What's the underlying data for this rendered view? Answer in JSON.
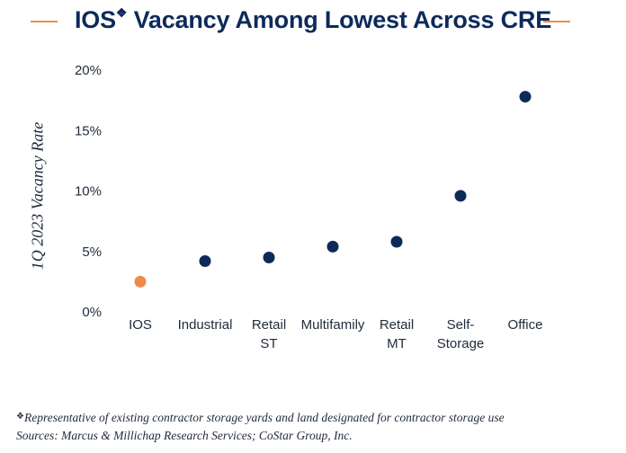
{
  "header": {
    "title_main": "IOS",
    "title_mark": "❖",
    "title_rest": " Vacancy Among Lowest Across CRE"
  },
  "colors": {
    "title": "#0e2a5b",
    "accent": "#f08a4b",
    "dot": "#0e2a5b",
    "highlight": "#f08a4b",
    "text": "#1f2a3a"
  },
  "chart_data": {
    "type": "scatter",
    "title": "IOS❖ Vacancy Among Lowest Across CRE",
    "xlabel": "",
    "ylabel": "1Q 2023 Vacancy Rate",
    "categories": [
      "IOS",
      "Industrial",
      "Retail ST",
      "Multifamily",
      "Retail MT",
      "Self-Storage",
      "Office"
    ],
    "category_label_lines": [
      [
        "IOS"
      ],
      [
        "Industrial"
      ],
      [
        "Retail",
        "ST"
      ],
      [
        "Multifamily"
      ],
      [
        "Retail",
        "MT"
      ],
      [
        "Self-",
        "Storage"
      ],
      [
        "Office"
      ]
    ],
    "values": [
      2.5,
      4.2,
      4.5,
      5.4,
      5.8,
      9.6,
      17.8
    ],
    "highlight_category": "IOS",
    "ylim": [
      0,
      20
    ],
    "yticks": [
      0,
      5,
      10,
      15,
      20
    ],
    "ytick_labels": [
      "0%",
      "5%",
      "10%",
      "15%",
      "20%"
    ],
    "grid": false,
    "legend": "none"
  },
  "footnote": {
    "mark": "❖",
    "line1": "Representative of existing contractor storage yards and land designated for contractor storage use",
    "line2": "Sources: Marcus & Millichap Research Services; CoStar Group, Inc."
  }
}
